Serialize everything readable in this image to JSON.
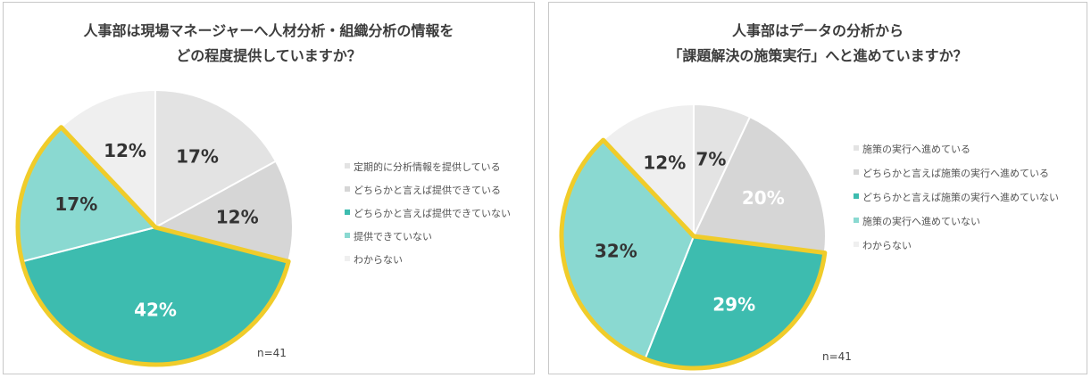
{
  "chart_data": [
    {
      "type": "pie",
      "title_lines": [
        "人事部は現場マネージャーへ人材分析・組織分析の情報を",
        "どの程度提供していますか？"
      ],
      "categories": [
        "定期的に分析情報を提供している",
        "どちらかと言えば提供できている",
        "どちらかと言えば提供できていない",
        "提供できていない",
        "わからない"
      ],
      "values": [
        17,
        12,
        42,
        17,
        12
      ],
      "labels": [
        "17%",
        "12%",
        "42%",
        "17%",
        "12%"
      ],
      "colors": [
        "#e3e3e3",
        "#d6d6d6",
        "#3dbcaf",
        "#8ad9d1",
        "#efefef"
      ],
      "label_colors": [
        "#333333",
        "#333333",
        "#ffffff",
        "#333333",
        "#333333"
      ],
      "highlighted": [
        2,
        3
      ],
      "highlight_color": "#f0cc2a",
      "note": "n=41",
      "legend_placement": "right"
    },
    {
      "type": "pie",
      "title_lines": [
        "人事部はデータの分析から",
        "「課題解決の施策実行」へと進めていますか？"
      ],
      "categories": [
        "施策の実行へ進めている",
        "どちらかと言えば施策の実行へ進めている",
        "どちらかと言えば施策の実行へ進めていない",
        "施策の実行へ進めていない",
        "わからない"
      ],
      "values": [
        7,
        20,
        29,
        32,
        12
      ],
      "labels": [
        "7%",
        "20%",
        "29%",
        "32%",
        "12%"
      ],
      "colors": [
        "#e3e3e3",
        "#d6d6d6",
        "#3dbcaf",
        "#8ad9d1",
        "#efefef"
      ],
      "label_colors": [
        "#333333",
        "#ffffff",
        "#ffffff",
        "#333333",
        "#333333"
      ],
      "highlighted": [
        2,
        3
      ],
      "highlight_color": "#f0cc2a",
      "note": "n=41",
      "legend_placement": "right"
    }
  ]
}
